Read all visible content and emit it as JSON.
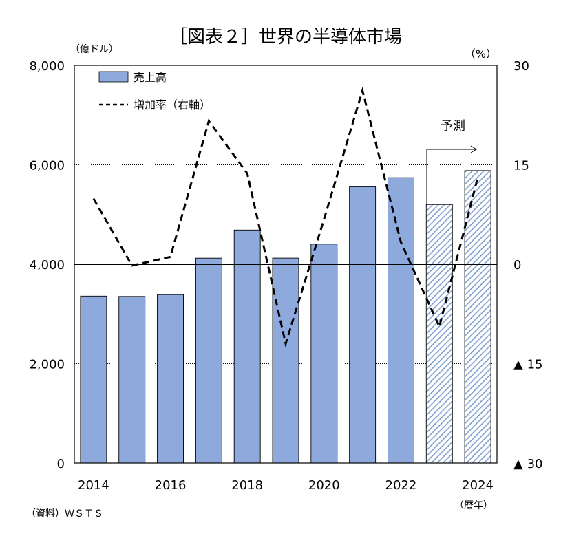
{
  "chart_data": {
    "type": "bar",
    "title": "［図表２］世界の半導体市場",
    "left_unit": "（億ドル）",
    "right_unit": "（%）",
    "x_unit": "（暦年）",
    "source": "（資料）ＷＳＴＳ",
    "forecast_label": "予測",
    "categories": [
      2014,
      2015,
      2016,
      2017,
      2018,
      2019,
      2020,
      2021,
      2022,
      2023,
      2024
    ],
    "x_tick_labels": [
      "2014",
      "2016",
      "2018",
      "2020",
      "2022",
      "2024"
    ],
    "left_ticks": [
      {
        "value": 0,
        "label": "0"
      },
      {
        "value": 2000,
        "label": "2,000"
      },
      {
        "value": 4000,
        "label": "4,000"
      },
      {
        "value": 6000,
        "label": "6,000"
      },
      {
        "value": 8000,
        "label": "8,000"
      }
    ],
    "right_ticks": [
      {
        "value": -30,
        "label": "▲ 30"
      },
      {
        "value": -15,
        "label": "▲ 15"
      },
      {
        "value": 0,
        "label": "0"
      },
      {
        "value": 15,
        "label": "15"
      },
      {
        "value": 30,
        "label": "30"
      }
    ],
    "ylim_left": [
      0,
      8000
    ],
    "ylim_right": [
      -30,
      30
    ],
    "series": [
      {
        "name": "売上高",
        "axis": "left",
        "kind": "bar",
        "color": "#8EA9DB",
        "values": [
          3359,
          3352,
          3389,
          4122,
          4688,
          4123,
          4404,
          5559,
          5741,
          5201,
          5884
        ],
        "forecast_from_index": 9
      },
      {
        "name": "増加率（右軸）",
        "axis": "right",
        "kind": "line",
        "style": "dashed",
        "color": "#000000",
        "values": [
          9.9,
          -0.2,
          1.1,
          21.6,
          13.7,
          -12.0,
          6.8,
          26.2,
          3.3,
          -9.4,
          13.1
        ]
      }
    ],
    "grid": "dotted at 6,000 and 2,000",
    "legend_position": "top-left"
  }
}
